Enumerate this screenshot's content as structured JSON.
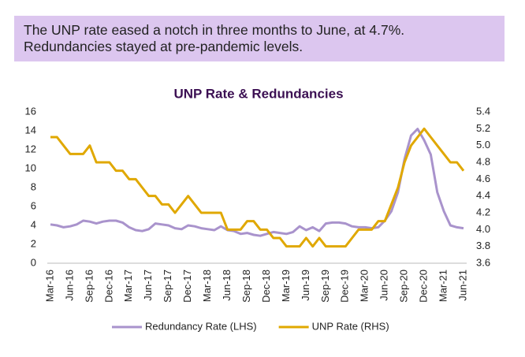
{
  "header": {
    "lines": [
      "The UNP rate eased a notch in three months to June, at 4.7%.",
      "Redundancies stayed at pre-pandemic levels."
    ]
  },
  "chart_data": {
    "type": "line",
    "title": "UNP Rate & Redundancies",
    "categories": [
      "Mar-16",
      null,
      null,
      "Jun-16",
      null,
      null,
      "Sep-16",
      null,
      null,
      "Dec-16",
      null,
      null,
      "Mar-17",
      null,
      null,
      "Jun-17",
      null,
      null,
      "Sep-17",
      null,
      null,
      "Dec-17",
      null,
      null,
      "Mar-18",
      null,
      null,
      "Jun-18",
      null,
      null,
      "Sep-18",
      null,
      null,
      "Dec-18",
      null,
      null,
      "Mar-19",
      null,
      null,
      "Jun-19",
      null,
      null,
      "Sep-19",
      null,
      null,
      "Dec-19",
      null,
      null,
      "Mar-20",
      null,
      null,
      "Jun-20",
      null,
      null,
      "Sep-20",
      null,
      null,
      "Dec-20",
      null,
      null,
      "Mar-21",
      null,
      null,
      "Jun-21"
    ],
    "series": [
      {
        "name": "Redundancy Rate (LHS)",
        "color": "#a993cc",
        "axis": "y",
        "values": [
          4.1,
          4.0,
          3.8,
          3.9,
          4.1,
          4.5,
          4.4,
          4.2,
          4.4,
          4.5,
          4.5,
          4.3,
          3.8,
          3.5,
          3.4,
          3.6,
          4.2,
          4.1,
          4.0,
          3.7,
          3.6,
          4.0,
          3.9,
          3.7,
          3.6,
          3.5,
          3.9,
          3.5,
          3.4,
          3.1,
          3.2,
          3.0,
          2.9,
          3.1,
          3.3,
          3.2,
          3.1,
          3.3,
          3.9,
          3.5,
          3.8,
          3.4,
          4.2,
          4.3,
          4.3,
          4.2,
          3.9,
          3.8,
          3.8,
          3.7,
          3.8,
          4.5,
          5.5,
          7.5,
          11.0,
          13.5,
          14.2,
          13.0,
          11.5,
          7.5,
          5.5,
          4.0,
          3.8,
          3.7
        ]
      },
      {
        "name": "UNP Rate (RHS)",
        "color": "#e0a800",
        "axis": "y2",
        "values": [
          5.1,
          5.1,
          5.0,
          4.9,
          4.9,
          4.9,
          5.0,
          4.8,
          4.8,
          4.8,
          4.7,
          4.7,
          4.6,
          4.6,
          4.5,
          4.4,
          4.4,
          4.3,
          4.3,
          4.2,
          4.3,
          4.4,
          4.3,
          4.2,
          4.2,
          4.2,
          4.2,
          4.0,
          4.0,
          4.0,
          4.1,
          4.1,
          4.0,
          4.0,
          3.9,
          3.9,
          3.8,
          3.8,
          3.8,
          3.9,
          3.8,
          3.9,
          3.8,
          3.8,
          3.8,
          3.8,
          3.9,
          4.0,
          4.0,
          4.0,
          4.1,
          4.1,
          4.3,
          4.5,
          4.8,
          5.0,
          5.1,
          5.2,
          5.1,
          5.0,
          4.9,
          4.8,
          4.8,
          4.7
        ]
      }
    ],
    "ylim": [
      0,
      16
    ],
    "yticks": [
      0,
      2,
      4,
      6,
      8,
      10,
      12,
      14,
      16
    ],
    "y2lim": [
      3.6,
      5.4
    ],
    "y2ticks": [
      3.6,
      3.8,
      {
        "value": 4,
        "label": "4.0"
      },
      4.2,
      4.4,
      4.6,
      4.8,
      {
        "value": 5,
        "label": "5.0"
      },
      5.2,
      5.4
    ],
    "grid": false,
    "legend": "bottom"
  }
}
